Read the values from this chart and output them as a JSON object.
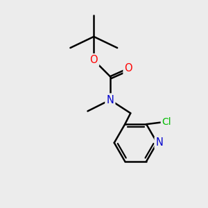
{
  "background_color": "#ececec",
  "bond_color": "#000000",
  "bond_width": 1.8,
  "atom_colors": {
    "O": "#ff0000",
    "N": "#0000cd",
    "Cl": "#00bb00",
    "C": "#000000"
  },
  "font_size": 9.5,
  "fig_width": 3.0,
  "fig_height": 3.0,
  "xlim": [
    0,
    10
  ],
  "ylim": [
    0,
    10
  ]
}
